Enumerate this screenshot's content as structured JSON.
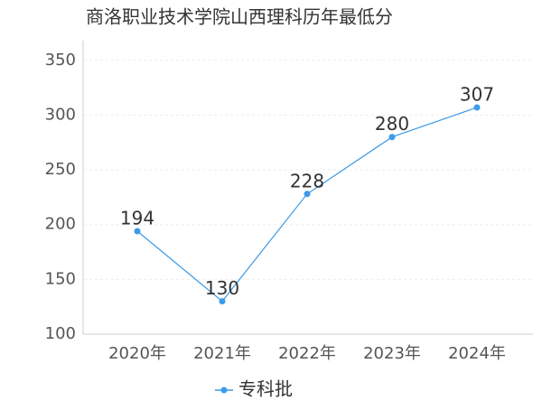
{
  "chart_data": {
    "type": "line",
    "title": "商洛职业技术学院山西理科历年最低分",
    "categories": [
      "2020年",
      "2021年",
      "2022年",
      "2023年",
      "2024年"
    ],
    "series": [
      {
        "name": "专科批",
        "color": "#3d9be9",
        "values": [
          194,
          130,
          228,
          280,
          307
        ]
      }
    ],
    "ylim": [
      100,
      368
    ],
    "yticks": [
      100,
      150,
      200,
      250,
      300,
      350
    ],
    "grid": true,
    "legend": "bottom"
  }
}
